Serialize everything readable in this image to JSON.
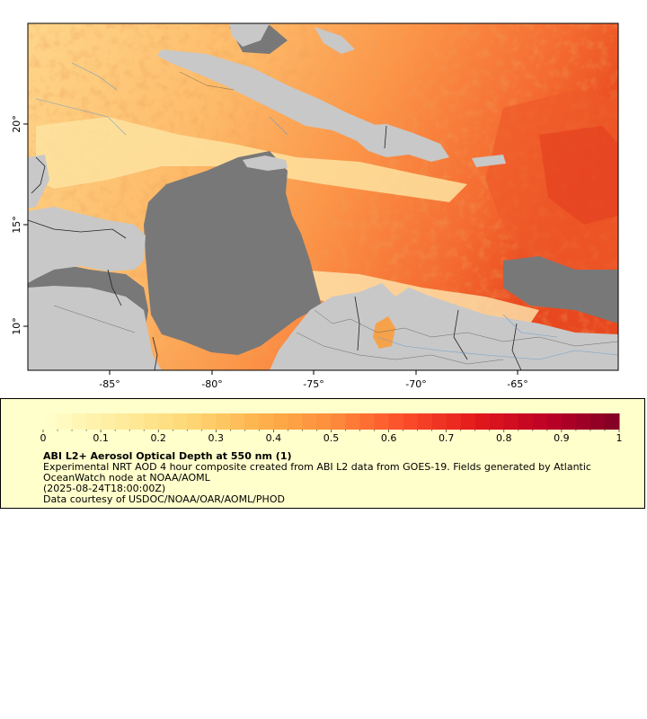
{
  "map": {
    "lat_ticks": [
      "20°",
      "15°",
      "10°"
    ],
    "lon_ticks": [
      "-85°",
      "-80°",
      "-75°",
      "-70°",
      "-65°"
    ],
    "colors": {
      "land": "#c8c8c8",
      "nodata": "#787878",
      "border": "#222222",
      "rivers": "#6a9cc9"
    }
  },
  "legend": {
    "ticks": [
      "0",
      "0.1",
      "0.2",
      "0.3",
      "0.4",
      "0.5",
      "0.6",
      "0.7",
      "0.8",
      "0.9",
      "1"
    ],
    "title": "ABI L2+ Aerosol Optical Depth at 550 nm (1)",
    "description": "Experimental NRT AOD 4 hour composite created from ABI L2 data from GOES-19. Fields generated by Atlantic OceanWatch node at NOAA/AOML",
    "date": "(2025-08-24T18:00:00Z)",
    "credit": "Data courtesy of USDOC/NOAA/OAR/AOML/PHOD",
    "range": [
      0,
      1
    ],
    "colormap": [
      "#ffffcc",
      "#ffeda0",
      "#fed976",
      "#feb24c",
      "#fd8d3c",
      "#fc4e2a",
      "#e31a1c",
      "#bd0026",
      "#800026"
    ]
  }
}
